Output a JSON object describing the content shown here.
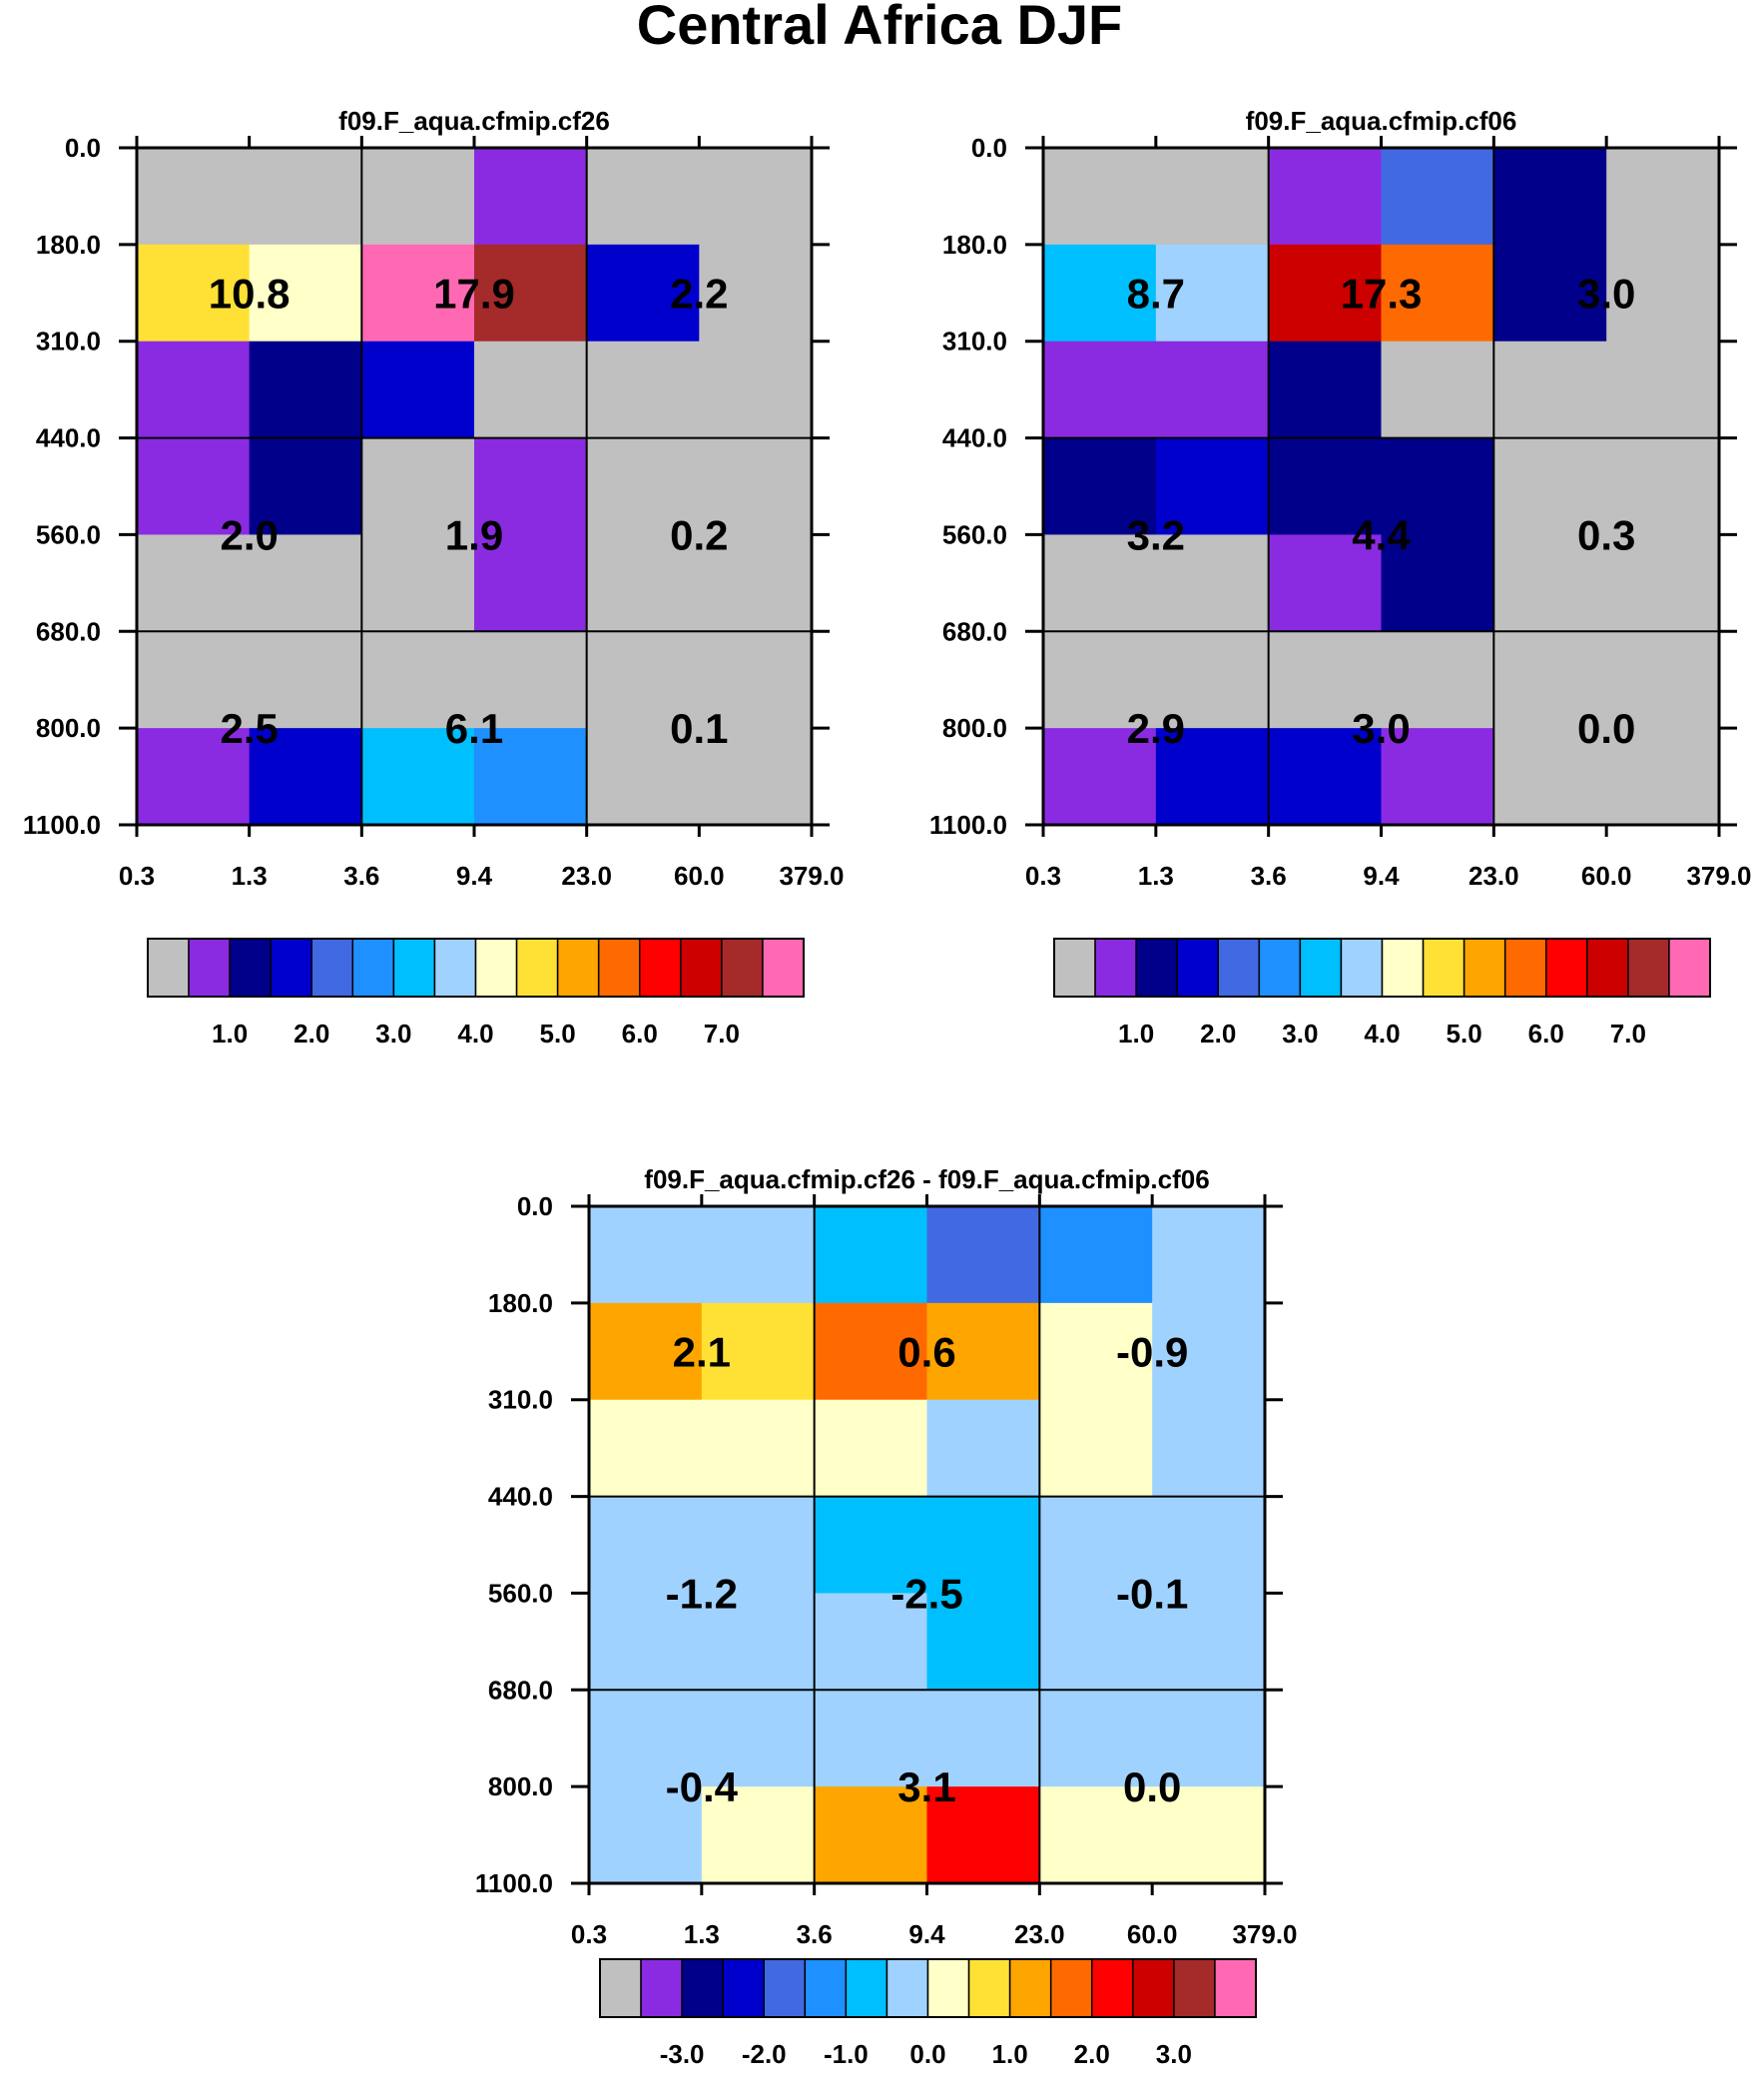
{
  "figure_title": "Central Africa DJF",
  "x_tick_labels": [
    "0.3",
    "1.3",
    "3.6",
    "9.4",
    "23.0",
    "60.0",
    "379.0"
  ],
  "y_tick_labels": [
    "0.0",
    "180.0",
    "310.0",
    "440.0",
    "560.0",
    "680.0",
    "800.0",
    "1100.0"
  ],
  "colors": {
    "palette": [
      "#c0c0c0",
      "#8a2be2",
      "#00008b",
      "#0000cd",
      "#4169e1",
      "#1e90ff",
      "#00bfff",
      "#a0d2ff",
      "#ffffc8",
      "#ffe135",
      "#ffa500",
      "#ff6a00",
      "#ff0000",
      "#cd0000",
      "#a52a2a",
      "#ff69b4"
    ]
  },
  "chart_data": [
    {
      "type": "heatmap",
      "title": "f09.F_aqua.cfmip.cf26",
      "x_edges": [
        0.3,
        1.3,
        3.6,
        9.4,
        23.0,
        60.0,
        379.0
      ],
      "y_edges": [
        0.0,
        180.0,
        310.0,
        440.0,
        560.0,
        680.0,
        800.0,
        1100.0
      ],
      "grid": [
        [
          0,
          0,
          0,
          1,
          0,
          0
        ],
        [
          9,
          8,
          15,
          14,
          3,
          0
        ],
        [
          1,
          2,
          3,
          0,
          0,
          0
        ],
        [
          1,
          2,
          0,
          1,
          0,
          0
        ],
        [
          0,
          0,
          0,
          1,
          0,
          0
        ],
        [
          0,
          0,
          0,
          0,
          0,
          0
        ],
        [
          1,
          3,
          6,
          5,
          0,
          0
        ]
      ],
      "box_values": [
        [
          "10.8",
          "17.9",
          "2.2"
        ],
        [
          "2.0",
          "1.9",
          "0.2"
        ],
        [
          "2.5",
          "6.1",
          "0.1"
        ]
      ],
      "colorbar": {
        "labels": [
          "1.0",
          "2.0",
          "3.0",
          "4.0",
          "5.0",
          "6.0",
          "7.0"
        ],
        "boxes": 16
      }
    },
    {
      "type": "heatmap",
      "title": "f09.F_aqua.cfmip.cf06",
      "x_edges": [
        0.3,
        1.3,
        3.6,
        9.4,
        23.0,
        60.0,
        379.0
      ],
      "y_edges": [
        0.0,
        180.0,
        310.0,
        440.0,
        560.0,
        680.0,
        800.0,
        1100.0
      ],
      "grid": [
        [
          0,
          0,
          1,
          4,
          2,
          0
        ],
        [
          6,
          7,
          13,
          11,
          2,
          0
        ],
        [
          1,
          1,
          2,
          0,
          0,
          0
        ],
        [
          2,
          3,
          2,
          2,
          0,
          0
        ],
        [
          0,
          0,
          1,
          2,
          0,
          0
        ],
        [
          0,
          0,
          0,
          0,
          0,
          0
        ],
        [
          1,
          3,
          3,
          1,
          0,
          0
        ]
      ],
      "box_values": [
        [
          "8.7",
          "17.3",
          "3.0"
        ],
        [
          "3.2",
          "4.4",
          "0.3"
        ],
        [
          "2.9",
          "3.0",
          "0.0"
        ]
      ],
      "colorbar": {
        "labels": [
          "1.0",
          "2.0",
          "3.0",
          "4.0",
          "5.0",
          "6.0",
          "7.0"
        ],
        "boxes": 16
      }
    },
    {
      "type": "heatmap",
      "title": "f09.F_aqua.cfmip.cf26 - f09.F_aqua.cfmip.cf06",
      "x_edges": [
        0.3,
        1.3,
        3.6,
        9.4,
        23.0,
        60.0,
        379.0
      ],
      "y_edges": [
        0.0,
        180.0,
        310.0,
        440.0,
        560.0,
        680.0,
        800.0,
        1100.0
      ],
      "grid": [
        [
          7,
          7,
          6,
          4,
          5,
          7
        ],
        [
          10,
          9,
          11,
          10,
          8,
          7
        ],
        [
          8,
          8,
          8,
          7,
          8,
          7
        ],
        [
          7,
          7,
          6,
          6,
          7,
          7
        ],
        [
          7,
          7,
          7,
          6,
          7,
          7
        ],
        [
          7,
          7,
          7,
          7,
          7,
          7
        ],
        [
          7,
          8,
          10,
          12,
          8,
          8
        ]
      ],
      "box_values": [
        [
          "2.1",
          "0.6",
          "-0.9"
        ],
        [
          "-1.2",
          "-2.5",
          "-0.1"
        ],
        [
          "-0.4",
          "3.1",
          "0.0"
        ]
      ],
      "colorbar": {
        "labels": [
          "-3.0",
          "-2.0",
          "-1.0",
          "0.0",
          "1.0",
          "2.0",
          "3.0"
        ],
        "boxes": 16
      }
    }
  ]
}
